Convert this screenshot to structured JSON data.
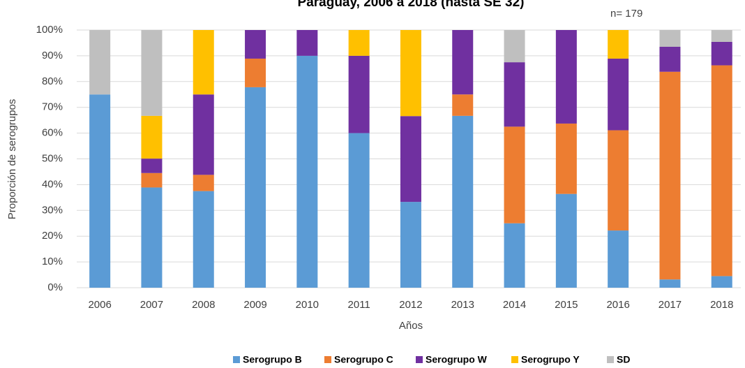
{
  "chart_data": {
    "type": "stacked_bar",
    "title": "Paraguay,  2006 a 2018 (hasta SE 32)",
    "annotation": "n= 179",
    "x_label": "Años",
    "y_label": "Proporción de serogrupos",
    "categories": [
      "2006",
      "2007",
      "2008",
      "2009",
      "2010",
      "2011",
      "2012",
      "2013",
      "2014",
      "2015",
      "2016",
      "2017",
      "2018"
    ],
    "series": [
      {
        "name": "Serogrupo B",
        "color": "#5b9bd5",
        "values": [
          75,
          38.9,
          37.5,
          77.8,
          90,
          60,
          33.3,
          66.7,
          25,
          36.4,
          22.2,
          3.2,
          4.5
        ]
      },
      {
        "name": "Serogrupo C",
        "color": "#ed7d31",
        "values": [
          0,
          5.6,
          6.3,
          11.1,
          0,
          0,
          0,
          8.3,
          37.5,
          27.3,
          38.9,
          80.6,
          81.8
        ]
      },
      {
        "name": "Serogrupo W",
        "color": "#7030a0",
        "values": [
          0,
          5.6,
          31.2,
          11.1,
          10,
          30,
          33.3,
          25,
          25,
          36.3,
          27.8,
          9.7,
          9.1
        ]
      },
      {
        "name": "Serogrupo Y",
        "color": "#ffc000",
        "values": [
          0,
          16.6,
          25,
          0,
          0,
          10,
          33.4,
          0,
          0,
          0,
          11.1,
          0,
          0
        ]
      },
      {
        "name": "SD",
        "color": "#bfbfbf",
        "values": [
          25,
          33.3,
          0,
          0,
          0,
          0,
          0,
          0,
          12.5,
          0,
          0,
          6.5,
          4.6
        ]
      }
    ],
    "ylim": [
      0,
      100
    ],
    "yticks": [
      {
        "value": 0,
        "label": "0%"
      },
      {
        "value": 10,
        "label": "10%"
      },
      {
        "value": 20,
        "label": "20%"
      },
      {
        "value": 30,
        "label": "30%"
      },
      {
        "value": 40,
        "label": "40%"
      },
      {
        "value": 50,
        "label": "50%"
      },
      {
        "value": 60,
        "label": "60%"
      },
      {
        "value": 70,
        "label": "70%"
      },
      {
        "value": 80,
        "label": "80%"
      },
      {
        "value": 90,
        "label": "90%"
      },
      {
        "value": 100,
        "label": "100%"
      }
    ],
    "grid": true,
    "legend": "bottom"
  }
}
